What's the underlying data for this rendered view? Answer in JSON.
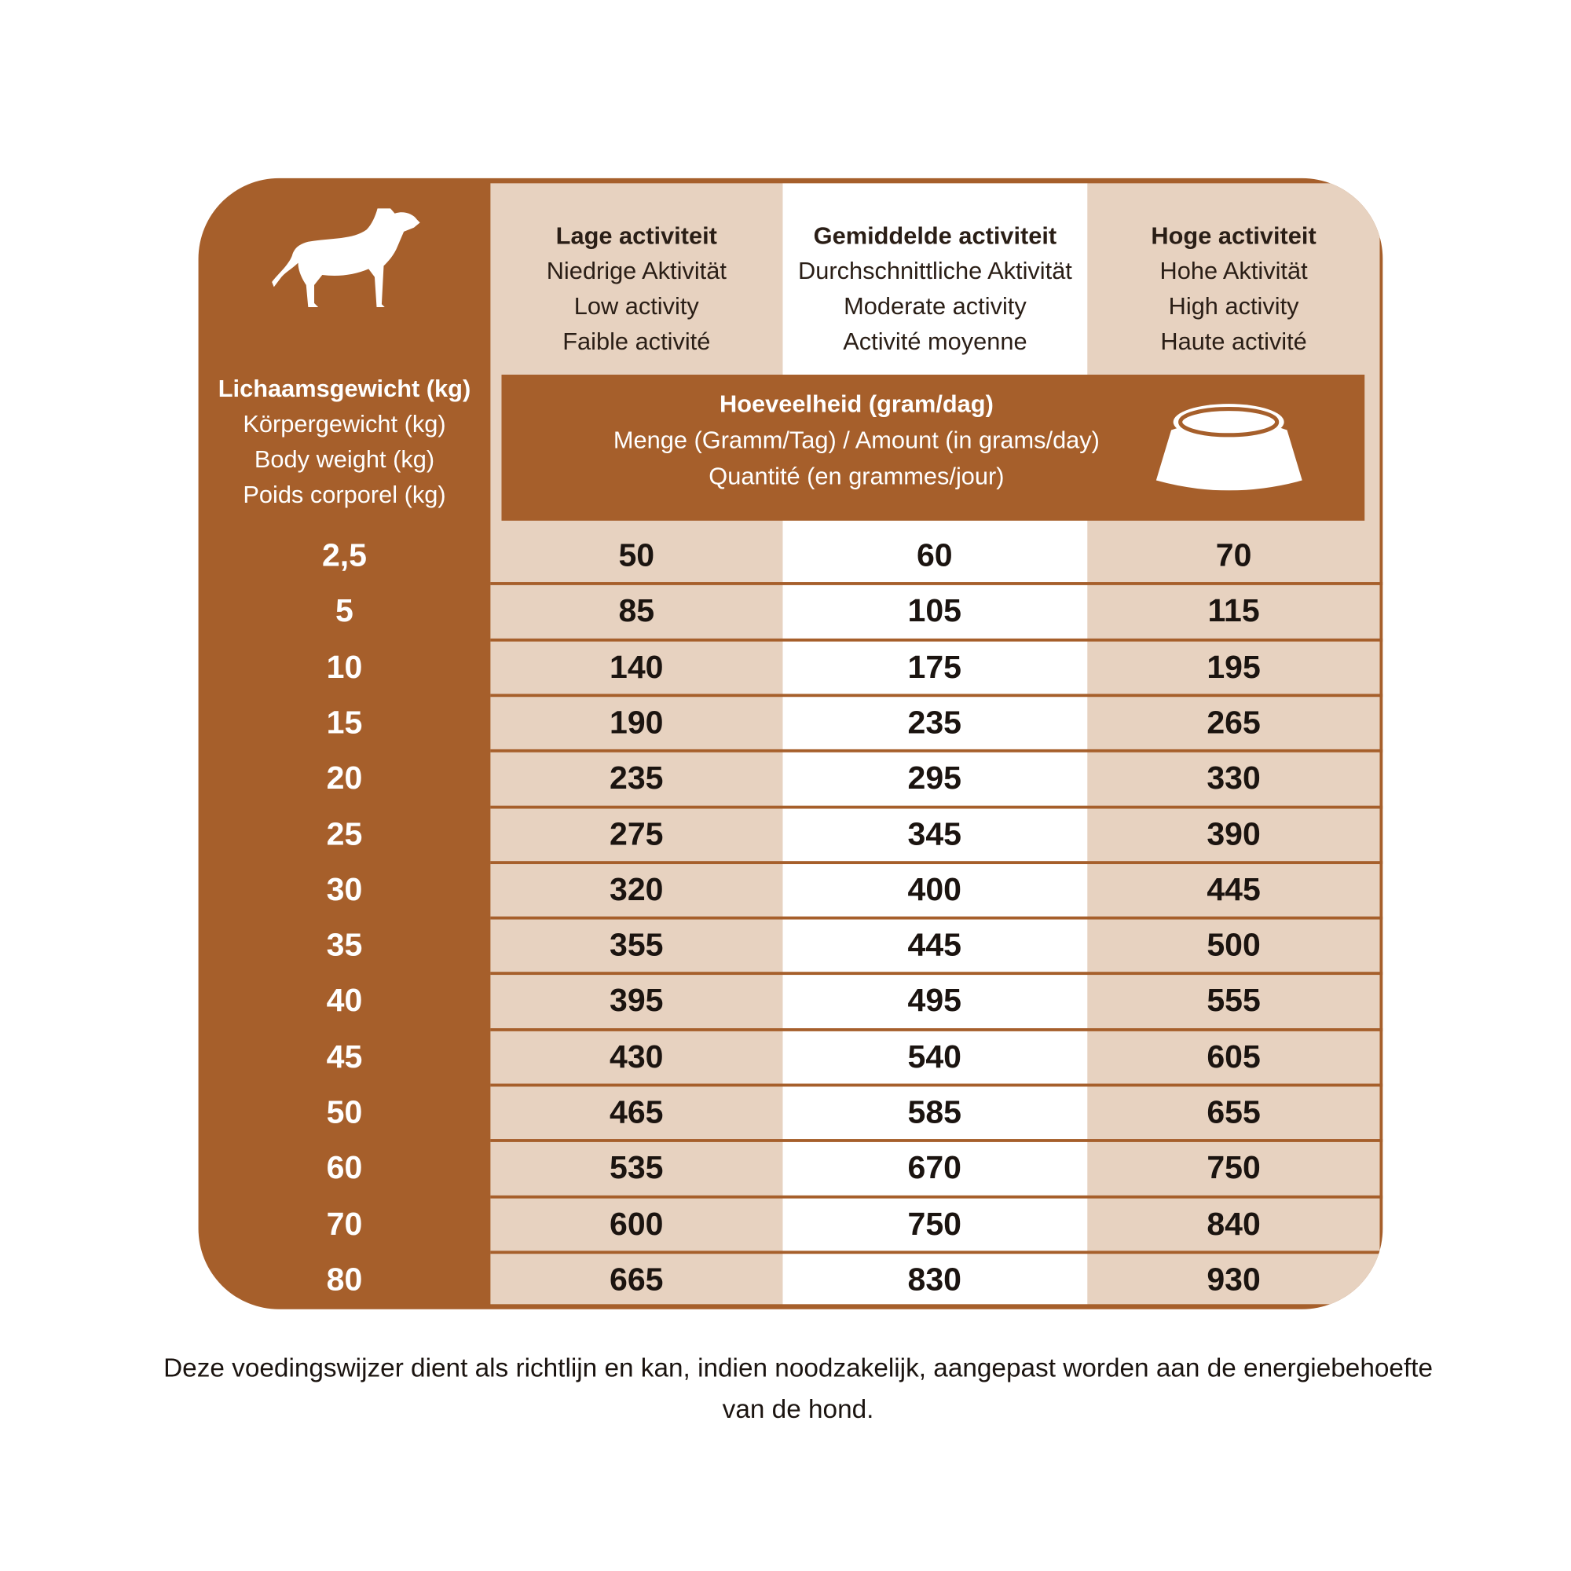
{
  "colors": {
    "brown": "#A65F2B",
    "beige": "#E7D2C0",
    "white": "#FFFFFF"
  },
  "icons": {
    "dog": "dog-silhouette-icon",
    "bowl": "food-bowl-icon"
  },
  "weight_header": [
    "Lichaamsgewicht (kg)",
    "Körpergewicht (kg)",
    "Body weight (kg)",
    "Poids corporel (kg)"
  ],
  "columns": [
    {
      "lines": [
        "Lage activiteit",
        "Niedrige Aktivität",
        "Low activity",
        "Faible activité"
      ]
    },
    {
      "lines": [
        "Gemiddelde activiteit",
        "Durchschnittliche Aktivität",
        "Moderate activity",
        "Activité moyenne"
      ]
    },
    {
      "lines": [
        "Hoge activiteit",
        "Hohe Aktivität",
        "High activity",
        "Haute activité"
      ]
    }
  ],
  "amount_header": [
    "Hoeveelheid (gram/dag)",
    "Menge (Gramm/Tag) / Amount (in grams/day)",
    "Quantité (en grammes/jour)"
  ],
  "rows": [
    {
      "weight": "2,5",
      "values": [
        "50",
        "60",
        "70"
      ]
    },
    {
      "weight": "5",
      "values": [
        "85",
        "105",
        "115"
      ]
    },
    {
      "weight": "10",
      "values": [
        "140",
        "175",
        "195"
      ]
    },
    {
      "weight": "15",
      "values": [
        "190",
        "235",
        "265"
      ]
    },
    {
      "weight": "20",
      "values": [
        "235",
        "295",
        "330"
      ]
    },
    {
      "weight": "25",
      "values": [
        "275",
        "345",
        "390"
      ]
    },
    {
      "weight": "30",
      "values": [
        "320",
        "400",
        "445"
      ]
    },
    {
      "weight": "35",
      "values": [
        "355",
        "445",
        "500"
      ]
    },
    {
      "weight": "40",
      "values": [
        "395",
        "495",
        "555"
      ]
    },
    {
      "weight": "45",
      "values": [
        "430",
        "540",
        "605"
      ]
    },
    {
      "weight": "50",
      "values": [
        "465",
        "585",
        "655"
      ]
    },
    {
      "weight": "60",
      "values": [
        "535",
        "670",
        "750"
      ]
    },
    {
      "weight": "70",
      "values": [
        "600",
        "750",
        "840"
      ]
    },
    {
      "weight": "80",
      "values": [
        "665",
        "830",
        "930"
      ]
    }
  ],
  "note": "Deze voedingswijzer dient als richtlijn en kan, indien noodzakelijk, aangepast worden aan de energiebehoefte van de hond."
}
